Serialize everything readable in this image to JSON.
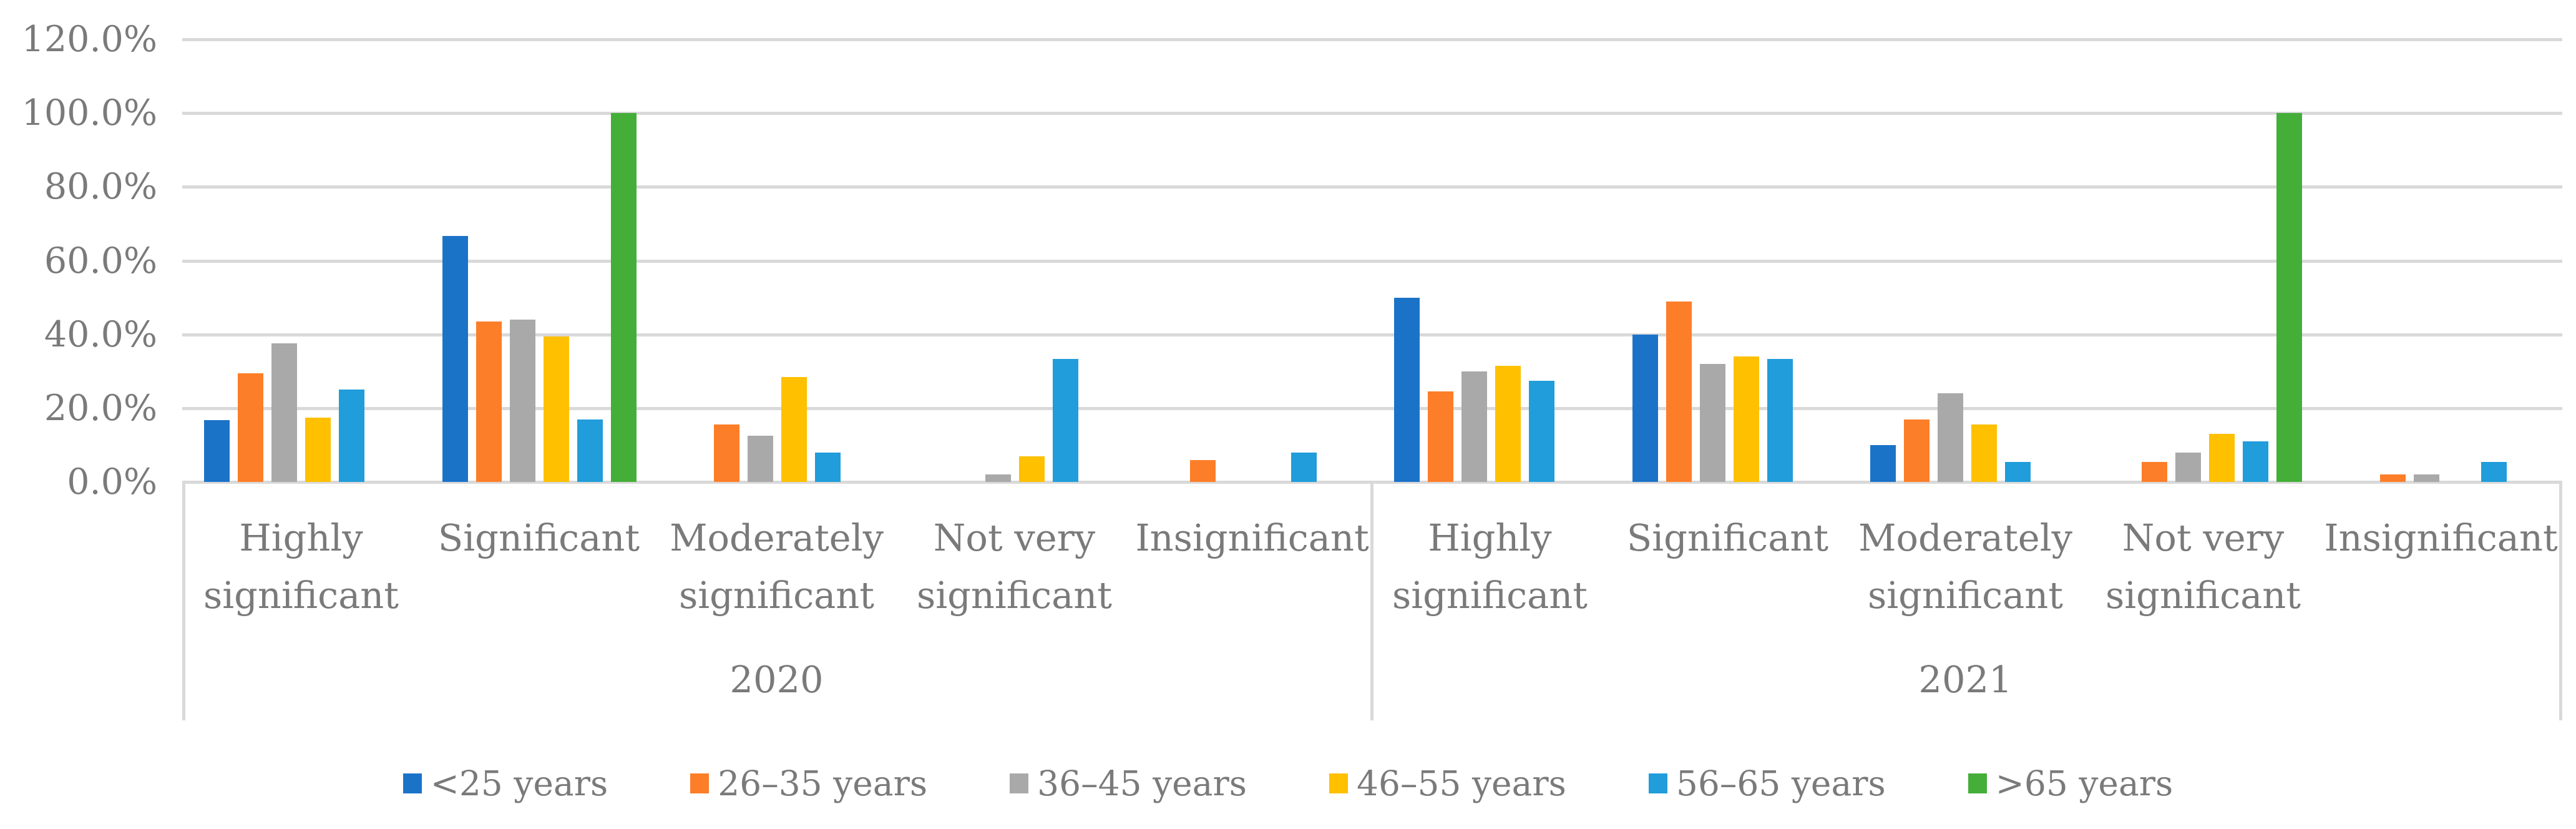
{
  "chart_data": {
    "type": "bar",
    "title": "",
    "unit": "%",
    "y_axis": {
      "tick_labels": [
        "120.0%",
        "100.0%",
        "80.0%",
        "60.0%",
        "40.0%",
        "20.0%",
        "0.0%"
      ],
      "min": 0,
      "max": 120,
      "step": 20,
      "grid": true
    },
    "legend_position": "bottom",
    "grid_color": "#d9d9d9",
    "text_color": "#7a7a7a",
    "series": [
      {
        "name": "<25 years",
        "color": "#1b73c8"
      },
      {
        "name": "26–35 years",
        "color": "#fc7e28"
      },
      {
        "name": "36–45 years",
        "color": "#a9a9a9"
      },
      {
        "name": "46–55 years",
        "color": "#ffc000"
      },
      {
        "name": "56–65 years",
        "color": "#209dda"
      },
      {
        "name": ">65 years",
        "color": "#44ae39"
      }
    ],
    "categories": [
      "Highly significant",
      "Significant",
      "Moderately significant",
      "Not very significant",
      "Insignificant"
    ],
    "panels": [
      {
        "year": "2020",
        "values_by_series": [
          [
            16.7,
            66.7,
            0.0,
            0.0,
            0.0
          ],
          [
            29.5,
            43.5,
            15.5,
            0.0,
            6.0
          ],
          [
            37.5,
            44.0,
            12.5,
            2.0,
            0.0
          ],
          [
            17.5,
            39.5,
            28.5,
            7.0,
            0.0
          ],
          [
            25.0,
            17.0,
            8.0,
            33.3,
            8.0
          ],
          [
            0.0,
            100.0,
            0.0,
            0.0,
            0.0
          ]
        ]
      },
      {
        "year": "2021",
        "values_by_series": [
          [
            50.0,
            40.0,
            10.0,
            0.0,
            0.0
          ],
          [
            24.5,
            49.0,
            17.0,
            5.5,
            2.0
          ],
          [
            30.0,
            32.0,
            24.0,
            8.0,
            2.0
          ],
          [
            31.5,
            34.0,
            15.5,
            13.0,
            0.0
          ],
          [
            27.5,
            33.3,
            5.5,
            11.0,
            5.5
          ],
          [
            0.0,
            0.0,
            0.0,
            100.0,
            0.0
          ]
        ]
      }
    ]
  }
}
